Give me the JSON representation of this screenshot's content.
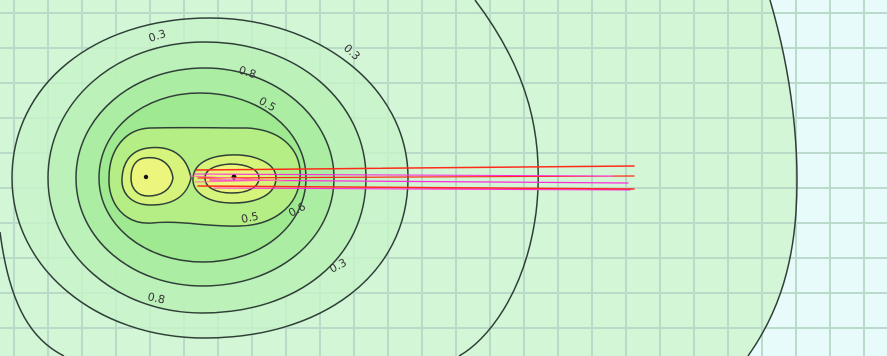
{
  "figure": {
    "kind": "contour-field-map",
    "colors": {
      "outer_field": "#e8fbfb",
      "mid_field": "#d2f6d6",
      "inner_field": "#a9eea3",
      "core_field": "#d8f27a",
      "hot_core": "#ecf57c",
      "grid_line": "#b6d8c6",
      "contour_line": "#2f3f38",
      "plume_red": "#ff2a1a",
      "plume_magenta": "#ff2bd9"
    },
    "contour_labels": [
      {
        "id": "label-outer-top",
        "text": "0.3"
      },
      {
        "id": "label-outer-right",
        "text": "0.3"
      },
      {
        "id": "label-mid-top",
        "text": "0.8"
      },
      {
        "id": "label-mid-right",
        "text": "0.5"
      },
      {
        "id": "label-inner-bottom",
        "text": "0.5"
      },
      {
        "id": "label-inner-right",
        "text": "0.6"
      },
      {
        "id": "label-lower-right",
        "text": "0.3"
      },
      {
        "id": "label-lower-left",
        "text": "0.8"
      }
    ]
  }
}
